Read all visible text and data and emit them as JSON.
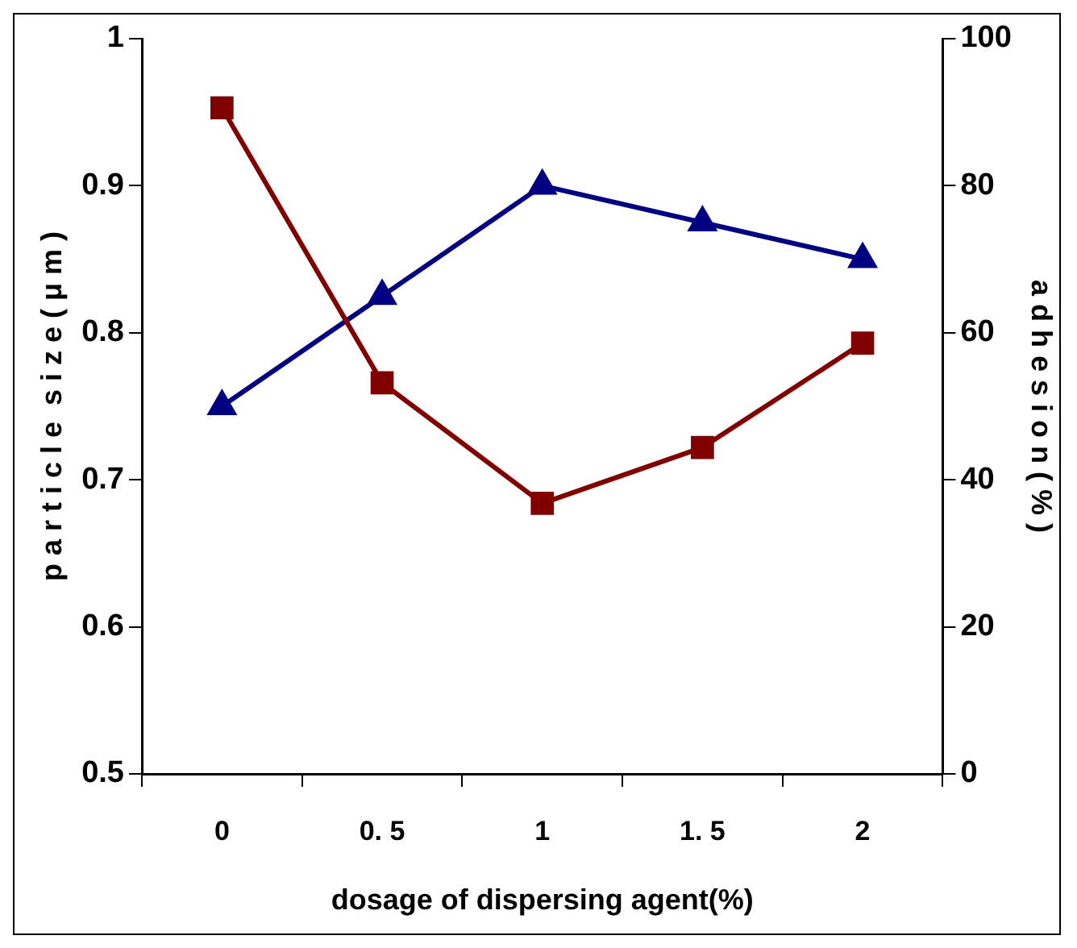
{
  "chart_data": {
    "type": "line",
    "xlabel": "dosage of dispersing agent(%)",
    "ylabel": "p a r t i c l e  s i z e ( μ m )",
    "y2label": "a d h e s i o n ( % )",
    "categories": [
      "0",
      "0. 5",
      "1",
      "1. 5",
      "2"
    ],
    "series": [
      {
        "color": "#800000",
        "marker": "square",
        "values": [
          0.953,
          0.766,
          0.684,
          0.722,
          0.793
        ]
      },
      {
        "color": "#000080",
        "marker": "triangle",
        "axis": "y2",
        "values": [
          50,
          65,
          80,
          75,
          70
        ]
      }
    ],
    "ylim": [
      0.5,
      1
    ],
    "yticks": [
      0.5,
      0.6,
      0.7,
      0.8,
      0.9,
      1
    ],
    "y2lim": [
      0,
      100
    ],
    "y2ticks": [
      0,
      20,
      40,
      60,
      80,
      100
    ],
    "grid": false,
    "legend": false,
    "line_style": "solid"
  }
}
